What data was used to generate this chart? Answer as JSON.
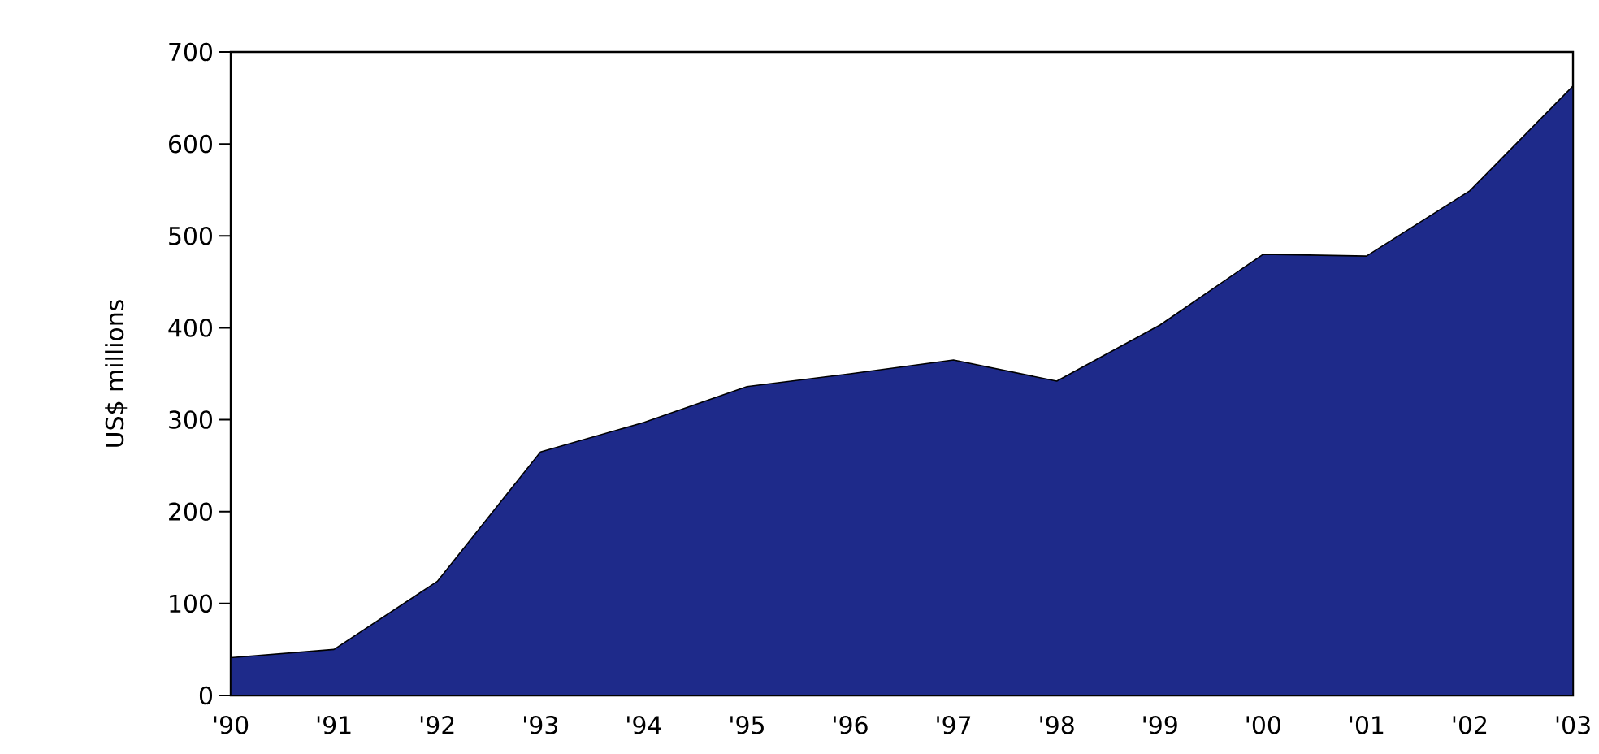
{
  "chart_data": {
    "type": "area",
    "ylabel": "US$ millions",
    "categories": [
      "'90",
      "'91",
      "'92",
      "'93",
      "'94",
      "'95",
      "'96",
      "'97",
      "'98",
      "'99",
      "'00",
      "'01",
      "'02",
      "'03"
    ],
    "series": [
      {
        "color": "#1e2a8a",
        "values": [
          41,
          50,
          124,
          265,
          297,
          336,
          350,
          365,
          342,
          403,
          480,
          478,
          549,
          663
        ]
      }
    ],
    "ylim": [
      0,
      700
    ],
    "yticks": [
      0,
      100,
      200,
      300,
      400,
      500,
      600,
      700
    ]
  }
}
